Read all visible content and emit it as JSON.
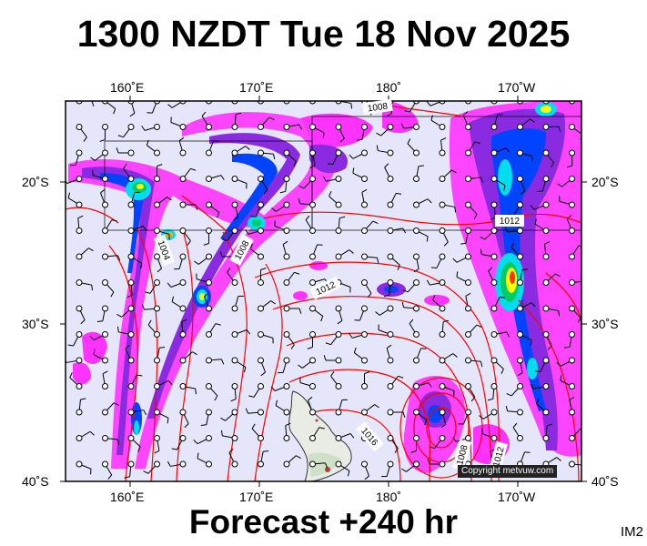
{
  "title": "1300 NZDT Tue 18 Nov 2025",
  "forecast_label": "Forecast +240 hr",
  "image_code": "IM2",
  "copyright": "Copyright metvuw.com",
  "longitude_labels": [
    "160˚E",
    "170˚E",
    "180˚",
    "170˚W"
  ],
  "latitude_labels": [
    "20˚S",
    "30˚S",
    "40˚S"
  ],
  "isobar_labels": [
    "1008",
    "1004",
    "1008",
    "1012",
    "1012",
    "1016",
    "1008",
    "1012"
  ],
  "colors": {
    "ocean_background": "#e6e6fa",
    "isobar": "#ff0000",
    "rain_light": "#ff33ff",
    "rain_moderate": "#8a2be2",
    "rain_heavy": "#0044ff",
    "rain_very_heavy": "#00ddee",
    "rain_extreme": "#ffff00"
  }
}
